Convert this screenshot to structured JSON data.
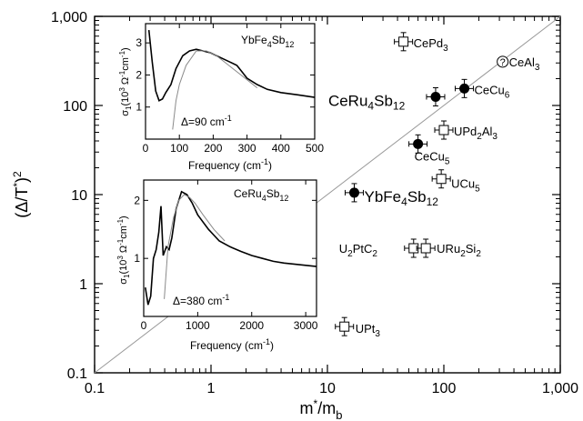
{
  "chart_data": [
    {
      "type": "scatter",
      "xlabel_base": "m",
      "xlabel_sup": "*",
      "xlabel_mid": "/m",
      "xlabel_sub": "b",
      "ylabel_open": "(Δ/T",
      "ylabel_sup": "*",
      "ylabel_close": ")",
      "ylabel_sup2": "2",
      "xscale": "log",
      "yscale": "log",
      "xlim": [
        0.1,
        1000
      ],
      "ylim": [
        0.1,
        1000
      ],
      "x_tick_labels": [
        "0.1",
        "1",
        "10",
        "100",
        "1,000"
      ],
      "y_tick_labels": [
        "0.1",
        "1",
        "10",
        "100",
        "1,000"
      ],
      "reference_line": {
        "x": [
          0.1,
          1000
        ],
        "y": [
          0.1,
          1000
        ]
      },
      "points": [
        {
          "label": "CePd",
          "sub": "3",
          "x": 45,
          "y": 520,
          "marker": "open-square",
          "error_bars": true
        },
        {
          "label": "CeAl",
          "sub": "3",
          "x": 320,
          "y": 310,
          "marker": "question-circle",
          "symbol": "?",
          "error_bars": false
        },
        {
          "label": "CeCu",
          "sub": "6",
          "x": 150,
          "y": 155,
          "marker": "filled-circle",
          "error_bars": true
        },
        {
          "label": "CeRu",
          "sub": "4",
          "label2": "Sb",
          "sub2": "12",
          "x": 85,
          "y": 125,
          "marker": "filled-circle",
          "error_bars": true,
          "large": true
        },
        {
          "label": "UPd",
          "sub": "2",
          "label2": "Al",
          "sub2": "3",
          "x": 100,
          "y": 53,
          "marker": "open-square",
          "error_bars": true
        },
        {
          "label": "CeCu",
          "sub": "5",
          "x": 60,
          "y": 37,
          "marker": "filled-circle",
          "error_bars": true
        },
        {
          "label": "UCu",
          "sub": "5",
          "x": 95,
          "y": 15,
          "marker": "open-square",
          "error_bars": true
        },
        {
          "label": "YbFe",
          "sub": "4",
          "label2": "Sb",
          "sub2": "12",
          "x": 17,
          "y": 10.5,
          "marker": "filled-circle",
          "error_bars": true,
          "large": true
        },
        {
          "label": "U",
          "sub": "2",
          "label2": "PtC",
          "sub2": "2",
          "x": 55,
          "y": 2.5,
          "marker": "open-square",
          "error_bars": true
        },
        {
          "label": "URu",
          "sub": "2",
          "label2": "Si",
          "sub2": "2",
          "x": 70,
          "y": 2.5,
          "marker": "open-square",
          "error_bars": true
        },
        {
          "label": "UPt",
          "sub": "3",
          "x": 14,
          "y": 0.33,
          "marker": "open-square",
          "error_bars": true
        }
      ]
    },
    {
      "type": "line",
      "title_base": "YbFe",
      "title_sub1": "4",
      "title_mid": "Sb",
      "title_sub2": "12",
      "ylabel_base": "σ",
      "ylabel_sub": "1",
      "ylabel_unit": "(10",
      "ylabel_unit_sup": "3",
      "ylabel_unit2": " Ω",
      "ylabel_unit_sup2": "-1",
      "ylabel_unit3": "cm",
      "ylabel_unit_sup3": "-1",
      "ylabel_unit4": ")",
      "xlabel_text": "Frequency (cm",
      "xlabel_sup": "-1",
      "xlabel_close": ")",
      "annotation": "Δ=90 cm",
      "annotation_sup": "-1",
      "xlim": [
        0,
        500
      ],
      "ylim": [
        0,
        3.6
      ],
      "x_tick_labels": [
        "0",
        "100",
        "200",
        "300",
        "400",
        "500"
      ],
      "y_tick_labels": [
        "1",
        "2",
        "3"
      ],
      "series": [
        {
          "x": [
            10,
            20,
            30,
            40,
            50,
            60,
            75,
            90,
            110,
            130,
            150,
            170,
            190,
            210,
            230,
            250,
            270,
            285,
            300,
            330,
            360,
            400,
            450,
            500
          ],
          "y": [
            3.4,
            2.4,
            1.5,
            1.2,
            1.25,
            1.45,
            1.7,
            2.2,
            2.6,
            2.75,
            2.8,
            2.75,
            2.7,
            2.6,
            2.5,
            2.4,
            2.3,
            2.1,
            1.9,
            1.7,
            1.55,
            1.45,
            1.38,
            1.3
          ]
        },
        {
          "x": [
            80,
            90,
            100,
            120,
            150,
            180,
            210,
            240,
            270,
            300,
            330
          ],
          "y": [
            0.3,
            1.2,
            1.7,
            2.3,
            2.75,
            2.75,
            2.6,
            2.35,
            2.1,
            1.85,
            1.6
          ]
        }
      ]
    },
    {
      "type": "line",
      "title_base": "CeRu",
      "title_sub1": "4",
      "title_mid": "Sb",
      "title_sub2": "12",
      "ylabel_base": "σ",
      "ylabel_sub": "1",
      "ylabel_unit": "(10",
      "ylabel_unit_sup": "3",
      "ylabel_unit2": " Ω",
      "ylabel_unit_sup2": "-1",
      "ylabel_unit3": "cm",
      "ylabel_unit_sup3": "-1",
      "ylabel_unit4": ")",
      "xlabel_text": "Frequency (cm",
      "xlabel_sup": "-1",
      "xlabel_close": ")",
      "annotation": "Δ=380 cm",
      "annotation_sup": "-1",
      "xlim": [
        0,
        3200
      ],
      "ylim": [
        0,
        2.35
      ],
      "x_tick_labels": [
        "0",
        "1000",
        "2000",
        "3000"
      ],
      "y_tick_labels": [
        "1",
        "2"
      ],
      "series": [
        {
          "x": [
            30,
            80,
            130,
            180,
            230,
            280,
            320,
            360,
            420,
            470,
            520,
            600,
            700,
            800,
            900,
            1000,
            1200,
            1400,
            1600,
            1800,
            2000,
            2200,
            2400,
            2600,
            2800,
            3000,
            3200
          ],
          "y": [
            0.5,
            0.2,
            0.35,
            1.0,
            1.15,
            1.45,
            1.9,
            1.05,
            1.2,
            1.15,
            1.35,
            1.85,
            2.15,
            2.1,
            1.95,
            1.75,
            1.5,
            1.3,
            1.2,
            1.12,
            1.05,
            1.0,
            0.95,
            0.92,
            0.9,
            0.88,
            0.86
          ]
        },
        {
          "x": [
            380,
            450,
            550,
            650,
            750,
            850,
            950,
            1100,
            1300,
            1500
          ],
          "y": [
            0.3,
            1.2,
            1.7,
            2.0,
            2.1,
            2.05,
            1.95,
            1.75,
            1.5,
            1.3
          ]
        }
      ]
    }
  ]
}
